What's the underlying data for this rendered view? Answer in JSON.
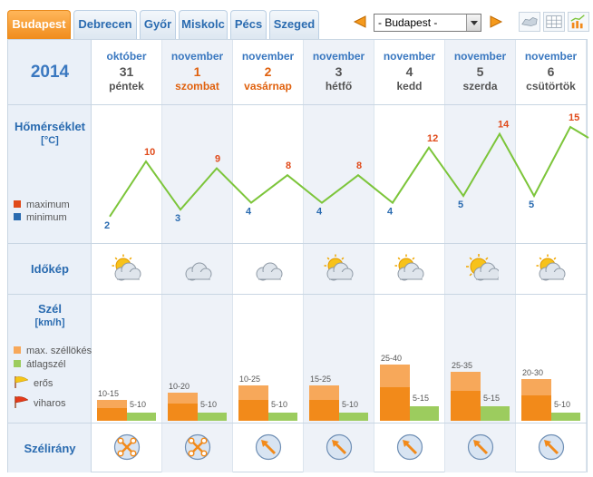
{
  "tabs": [
    {
      "label": "Budapest",
      "active": true
    },
    {
      "label": "Debrecen",
      "active": false
    },
    {
      "label": "Győr",
      "active": false
    },
    {
      "label": "Miskolc",
      "active": false
    },
    {
      "label": "Pécs",
      "active": false
    },
    {
      "label": "Szeged",
      "active": false
    }
  ],
  "city_select": {
    "value": "- Budapest -"
  },
  "year": "2014",
  "rows": {
    "temperature": {
      "title": "Hőmérséklet",
      "unit": "[°C]",
      "legend_max": "maximum",
      "legend_min": "minimum"
    },
    "weather": {
      "title": "Időkép"
    },
    "wind": {
      "title": "Szél",
      "unit": "[km/h]",
      "legend_gust": "max. széllökés",
      "legend_avg": "átlagszél",
      "legend_strong": "erős",
      "legend_storm": "viharos"
    },
    "direction": {
      "title": "Szélirány"
    }
  },
  "colors": {
    "max": "#e04a1a",
    "min": "#2a6bb0",
    "line": "#7cc53a",
    "gust": "#f7a85a",
    "gust_dark": "#f28a1a",
    "avg": "#9ccc5e"
  },
  "days": [
    {
      "month": "október",
      "day": "31",
      "name": "péntek",
      "weekend": false,
      "max": 10,
      "min": 2,
      "icon": "partly-cloudy-icon",
      "gust": "10-15",
      "avg": "5-10",
      "gust_hi": 15,
      "avg_hi": 10,
      "dir": "cross-icon"
    },
    {
      "month": "november",
      "day": "1",
      "name": "szombat",
      "weekend": true,
      "max": 9,
      "min": 3,
      "icon": "cloudy-icon",
      "gust": "10-20",
      "avg": "5-10",
      "gust_hi": 20,
      "avg_hi": 10,
      "dir": "cross-icon"
    },
    {
      "month": "november",
      "day": "2",
      "name": "vasárnap",
      "weekend": true,
      "max": 8,
      "min": 4,
      "icon": "cloudy-icon",
      "gust": "10-25",
      "avg": "5-10",
      "gust_hi": 25,
      "avg_hi": 10,
      "dir": "nw-arrow-icon"
    },
    {
      "month": "november",
      "day": "3",
      "name": "hétfő",
      "weekend": false,
      "max": 8,
      "min": 4,
      "icon": "partly-cloudy-icon",
      "gust": "15-25",
      "avg": "5-10",
      "gust_hi": 25,
      "avg_hi": 10,
      "dir": "nw-arrow-icon"
    },
    {
      "month": "november",
      "day": "4",
      "name": "kedd",
      "weekend": false,
      "max": 12,
      "min": 4,
      "icon": "partly-cloudy-icon",
      "gust": "25-40",
      "avg": "5-15",
      "gust_hi": 40,
      "avg_hi": 15,
      "dir": "nw-arrow-icon"
    },
    {
      "month": "november",
      "day": "5",
      "name": "szerda",
      "weekend": false,
      "max": 14,
      "min": 5,
      "icon": "sunny-cloud-icon",
      "gust": "25-35",
      "avg": "5-15",
      "gust_hi": 35,
      "avg_hi": 15,
      "dir": "nw-arrow-icon"
    },
    {
      "month": "november",
      "day": "6",
      "name": "csütörtök",
      "weekend": false,
      "max": 15,
      "min": 5,
      "icon": "partly-cloudy-icon",
      "gust": "20-30",
      "avg": "5-10",
      "gust_hi": 30,
      "avg_hi": 10,
      "dir": "nw-arrow-icon"
    }
  ]
}
